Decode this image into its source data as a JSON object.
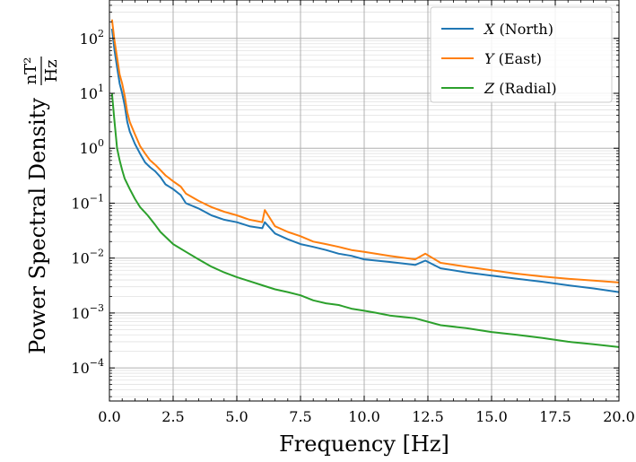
{
  "chart_data": {
    "type": "line",
    "xlabel": "Frequency [Hz]",
    "ylabel_main": "Power Spectral Density",
    "ylabel_unit_num": "nT²",
    "ylabel_unit_den": "Hz",
    "xlim": [
      0,
      20
    ],
    "ylim": [
      2.5e-05,
      500
    ],
    "yscale": "log",
    "grid": true,
    "legend_position": "top-right",
    "x_ticks": [
      0,
      2.5,
      5,
      7.5,
      10,
      12.5,
      15,
      17.5,
      20
    ],
    "x_tick_labels": [
      "0.0",
      "2.5",
      "5.0",
      "7.5",
      "10.0",
      "12.5",
      "15.0",
      "17.5",
      "20.0"
    ],
    "y_tick_labels": [
      {
        "value": 0.0001,
        "base": "10",
        "exp": "−4"
      },
      {
        "value": 0.001,
        "base": "10",
        "exp": "−3"
      },
      {
        "value": 0.01,
        "base": "10",
        "exp": "−2"
      },
      {
        "value": 0.1,
        "base": "10",
        "exp": "−1"
      },
      {
        "value": 1,
        "base": "10",
        "exp": "0"
      },
      {
        "value": 10,
        "base": "10",
        "exp": "1"
      },
      {
        "value": 100,
        "base": "10",
        "exp": "2"
      }
    ],
    "series": [
      {
        "name_var": "X",
        "name_rest": " (North)",
        "color": "#1f77b4",
        "x": [
          0.1,
          0.2,
          0.3,
          0.4,
          0.5,
          0.6,
          0.7,
          0.8,
          1.0,
          1.2,
          1.4,
          1.6,
          1.8,
          2.0,
          2.2,
          2.5,
          2.8,
          3.0,
          3.5,
          4.0,
          4.5,
          5.0,
          5.5,
          6.0,
          6.1,
          6.5,
          7.0,
          7.5,
          8.0,
          8.5,
          9.0,
          9.5,
          10.0,
          11.0,
          12.0,
          12.4,
          13.0,
          14.0,
          15.0,
          16.0,
          17.0,
          18.0,
          19.0,
          20.0
        ],
        "y": [
          150,
          60,
          30,
          15,
          10,
          6,
          3,
          2,
          1.2,
          0.8,
          0.55,
          0.45,
          0.38,
          0.3,
          0.22,
          0.18,
          0.14,
          0.1,
          0.08,
          0.06,
          0.05,
          0.045,
          0.038,
          0.035,
          0.045,
          0.028,
          0.022,
          0.018,
          0.016,
          0.014,
          0.012,
          0.011,
          0.0095,
          0.0085,
          0.0075,
          0.009,
          0.0065,
          0.0055,
          0.0048,
          0.0042,
          0.0037,
          0.0032,
          0.0028,
          0.0024
        ]
      },
      {
        "name_var": "Y",
        "name_rest": " (East)",
        "color": "#ff7f0e",
        "x": [
          0.1,
          0.2,
          0.3,
          0.4,
          0.5,
          0.6,
          0.7,
          0.8,
          1.0,
          1.2,
          1.4,
          1.6,
          1.8,
          2.0,
          2.2,
          2.5,
          2.8,
          3.0,
          3.5,
          4.0,
          4.5,
          5.0,
          5.5,
          6.0,
          6.1,
          6.5,
          7.0,
          7.5,
          8.0,
          8.5,
          9.0,
          9.5,
          10.0,
          11.0,
          12.0,
          12.4,
          13.0,
          14.0,
          15.0,
          16.0,
          17.0,
          18.0,
          19.0,
          20.0
        ],
        "y": [
          220,
          90,
          45,
          22,
          15,
          9,
          4.5,
          3,
          1.8,
          1.1,
          0.8,
          0.6,
          0.5,
          0.4,
          0.32,
          0.25,
          0.2,
          0.15,
          0.11,
          0.085,
          0.07,
          0.06,
          0.05,
          0.045,
          0.075,
          0.038,
          0.03,
          0.025,
          0.02,
          0.018,
          0.016,
          0.014,
          0.013,
          0.011,
          0.0095,
          0.012,
          0.0082,
          0.007,
          0.006,
          0.0052,
          0.0046,
          0.0042,
          0.0039,
          0.0036
        ]
      },
      {
        "name_var": "Z",
        "name_rest": " (Radial)",
        "color": "#2ca02c",
        "x": [
          0.1,
          0.2,
          0.3,
          0.4,
          0.5,
          0.6,
          0.8,
          1.0,
          1.2,
          1.5,
          1.8,
          2.0,
          2.5,
          3.0,
          3.5,
          4.0,
          4.5,
          5.0,
          5.5,
          6.0,
          6.5,
          7.0,
          7.5,
          8.0,
          8.5,
          9.0,
          9.5,
          10.0,
          10.5,
          11.0,
          12.0,
          13.0,
          14.0,
          15.0,
          16.0,
          17.0,
          18.0,
          19.0,
          20.0
        ],
        "y": [
          10,
          3,
          1,
          0.6,
          0.4,
          0.28,
          0.18,
          0.12,
          0.085,
          0.06,
          0.04,
          0.03,
          0.018,
          0.013,
          0.0095,
          0.007,
          0.0055,
          0.0045,
          0.0038,
          0.0032,
          0.0027,
          0.0024,
          0.0021,
          0.0017,
          0.0015,
          0.0014,
          0.0012,
          0.0011,
          0.001,
          0.0009,
          0.0008,
          0.0006,
          0.00053,
          0.00045,
          0.0004,
          0.00035,
          0.0003,
          0.00027,
          0.00024
        ]
      }
    ]
  }
}
